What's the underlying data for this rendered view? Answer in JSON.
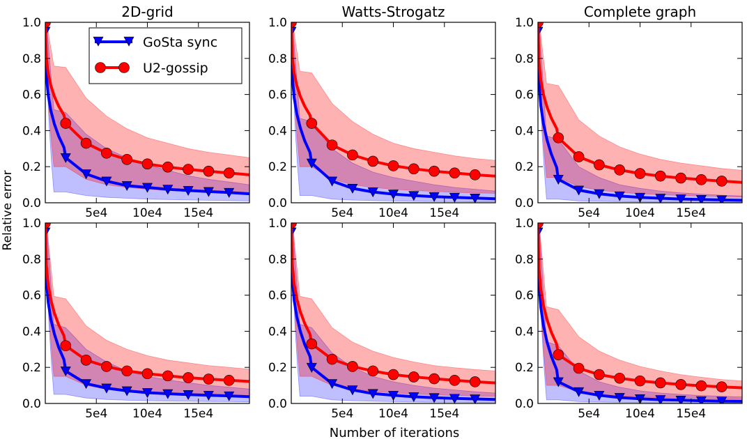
{
  "figure": {
    "ylabel": "Relative error",
    "xlabel": "Number of iterations"
  },
  "legend": {
    "entries": [
      "GoSta sync",
      "U2-gossip"
    ],
    "colors": [
      "#0000ff",
      "#ff0000"
    ]
  },
  "chart_data": [
    {
      "type": "line",
      "row": 0,
      "col": 0,
      "title": "2D-grid",
      "xlim": [
        0,
        200000
      ],
      "ylim": [
        0,
        1.0
      ],
      "yticks": [
        "0.0",
        "0.2",
        "0.4",
        "0.6",
        "0.8",
        "1.0"
      ],
      "xticks": [
        {
          "v": 50000,
          "label": "5e4"
        },
        {
          "v": 100000,
          "label": "10e4"
        },
        {
          "v": 150000,
          "label": "15e4"
        }
      ],
      "series": [
        {
          "name": "GoSta sync",
          "color": "#0000ff",
          "marker": "triangle-down",
          "start": 0.95,
          "x": [
            20000,
            40000,
            60000,
            80000,
            100000,
            120000,
            140000,
            160000,
            180000,
            200000
          ],
          "values": [
            0.25,
            0.16,
            0.12,
            0.095,
            0.085,
            0.075,
            0.068,
            0.062,
            0.057,
            0.05
          ],
          "band_low": [
            0.06,
            0.04,
            0.03,
            0.025,
            0.02,
            0.018,
            0.016,
            0.014,
            0.012,
            0.01
          ],
          "band_high": [
            0.5,
            0.38,
            0.3,
            0.25,
            0.21,
            0.18,
            0.15,
            0.13,
            0.115,
            0.1
          ]
        },
        {
          "name": "U2-gossip",
          "color": "#ff0000",
          "marker": "circle",
          "start": 1.0,
          "x": [
            20000,
            40000,
            60000,
            80000,
            100000,
            120000,
            140000,
            160000,
            180000,
            200000
          ],
          "values": [
            0.44,
            0.33,
            0.275,
            0.24,
            0.215,
            0.198,
            0.185,
            0.175,
            0.165,
            0.155
          ],
          "band_low": [
            0.2,
            0.13,
            0.1,
            0.085,
            0.075,
            0.068,
            0.063,
            0.058,
            0.055,
            0.052
          ],
          "band_high": [
            0.75,
            0.58,
            0.48,
            0.41,
            0.36,
            0.33,
            0.3,
            0.28,
            0.265,
            0.25
          ]
        }
      ]
    },
    {
      "type": "line",
      "row": 0,
      "col": 1,
      "title": "Watts-Strogatz",
      "xlim": [
        0,
        200000
      ],
      "ylim": [
        0,
        1.0
      ],
      "yticks": [
        "0.0",
        "0.2",
        "0.4",
        "0.6",
        "0.8",
        "1.0"
      ],
      "xticks": [
        {
          "v": 50000,
          "label": "5e4"
        },
        {
          "v": 100000,
          "label": "10e4"
        },
        {
          "v": 150000,
          "label": "15e4"
        }
      ],
      "series": [
        {
          "name": "GoSta sync",
          "color": "#0000ff",
          "marker": "triangle-down",
          "start": 0.95,
          "x": [
            20000,
            40000,
            60000,
            80000,
            100000,
            120000,
            140000,
            160000,
            180000,
            200000
          ],
          "values": [
            0.22,
            0.12,
            0.08,
            0.06,
            0.048,
            0.04,
            0.034,
            0.03,
            0.026,
            0.022
          ],
          "band_low": [
            0.04,
            0.02,
            0.015,
            0.012,
            0.01,
            0.008,
            0.007,
            0.006,
            0.005,
            0.005
          ],
          "band_high": [
            0.45,
            0.3,
            0.22,
            0.17,
            0.14,
            0.12,
            0.1,
            0.085,
            0.075,
            0.065
          ]
        },
        {
          "name": "U2-gossip",
          "color": "#ff0000",
          "marker": "circle",
          "start": 1.0,
          "x": [
            20000,
            40000,
            60000,
            80000,
            100000,
            120000,
            140000,
            160000,
            180000,
            200000
          ],
          "values": [
            0.44,
            0.32,
            0.265,
            0.23,
            0.205,
            0.188,
            0.175,
            0.165,
            0.155,
            0.148
          ],
          "band_low": [
            0.2,
            0.13,
            0.1,
            0.085,
            0.075,
            0.068,
            0.063,
            0.058,
            0.055,
            0.052
          ],
          "band_high": [
            0.72,
            0.55,
            0.45,
            0.38,
            0.33,
            0.3,
            0.28,
            0.26,
            0.245,
            0.235
          ]
        }
      ]
    },
    {
      "type": "line",
      "row": 0,
      "col": 2,
      "title": "Complete graph",
      "xlim": [
        0,
        200000
      ],
      "ylim": [
        0,
        1.0
      ],
      "yticks": [
        "0.0",
        "0.2",
        "0.4",
        "0.6",
        "0.8",
        "1.0"
      ],
      "xticks": [
        {
          "v": 50000,
          "label": "5e4"
        },
        {
          "v": 100000,
          "label": "10e4"
        },
        {
          "v": 150000,
          "label": "15e4"
        }
      ],
      "series": [
        {
          "name": "GoSta sync",
          "color": "#0000ff",
          "marker": "triangle-down",
          "start": 0.95,
          "x": [
            20000,
            40000,
            60000,
            80000,
            100000,
            120000,
            140000,
            160000,
            180000,
            200000
          ],
          "values": [
            0.13,
            0.07,
            0.05,
            0.038,
            0.03,
            0.025,
            0.021,
            0.018,
            0.016,
            0.014
          ],
          "band_low": [
            0.02,
            0.01,
            0.008,
            0.006,
            0.005,
            0.004,
            0.004,
            0.003,
            0.003,
            0.003
          ],
          "band_high": [
            0.35,
            0.2,
            0.14,
            0.1,
            0.08,
            0.065,
            0.055,
            0.048,
            0.042,
            0.038
          ]
        },
        {
          "name": "U2-gossip",
          "color": "#ff0000",
          "marker": "circle",
          "start": 1.0,
          "x": [
            20000,
            40000,
            60000,
            80000,
            100000,
            120000,
            140000,
            160000,
            180000,
            200000
          ],
          "values": [
            0.36,
            0.255,
            0.21,
            0.182,
            0.162,
            0.148,
            0.137,
            0.128,
            0.12,
            0.113
          ],
          "band_low": [
            0.14,
            0.09,
            0.07,
            0.058,
            0.05,
            0.045,
            0.04,
            0.037,
            0.034,
            0.032
          ],
          "band_high": [
            0.65,
            0.46,
            0.37,
            0.31,
            0.27,
            0.24,
            0.22,
            0.205,
            0.19,
            0.18
          ]
        }
      ]
    },
    {
      "type": "line",
      "row": 1,
      "col": 0,
      "title": "",
      "xlim": [
        0,
        200000
      ],
      "ylim": [
        0,
        1.0
      ],
      "yticks": [
        "0.0",
        "0.2",
        "0.4",
        "0.6",
        "0.8",
        "1.0"
      ],
      "xticks": [
        {
          "v": 50000,
          "label": "5e4"
        },
        {
          "v": 100000,
          "label": "10e4"
        },
        {
          "v": 150000,
          "label": "15e4"
        }
      ],
      "series": [
        {
          "name": "GoSta sync",
          "color": "#0000ff",
          "marker": "triangle-down",
          "start": 0.95,
          "x": [
            20000,
            40000,
            60000,
            80000,
            100000,
            120000,
            140000,
            160000,
            180000,
            200000
          ],
          "values": [
            0.18,
            0.11,
            0.085,
            0.07,
            0.06,
            0.054,
            0.049,
            0.045,
            0.042,
            0.038
          ],
          "band_low": [
            0.05,
            0.03,
            0.022,
            0.018,
            0.015,
            0.013,
            0.012,
            0.011,
            0.01,
            0.009
          ],
          "band_high": [
            0.42,
            0.3,
            0.23,
            0.18,
            0.15,
            0.13,
            0.115,
            0.1,
            0.09,
            0.08
          ]
        },
        {
          "name": "U2-gossip",
          "color": "#ff0000",
          "marker": "circle",
          "start": 1.0,
          "x": [
            20000,
            40000,
            60000,
            80000,
            100000,
            120000,
            140000,
            160000,
            180000,
            200000
          ],
          "values": [
            0.32,
            0.24,
            0.205,
            0.18,
            0.165,
            0.153,
            0.143,
            0.135,
            0.128,
            0.122
          ],
          "band_low": [
            0.15,
            0.1,
            0.08,
            0.068,
            0.06,
            0.055,
            0.05,
            0.047,
            0.044,
            0.042
          ],
          "band_high": [
            0.58,
            0.43,
            0.35,
            0.3,
            0.265,
            0.24,
            0.225,
            0.21,
            0.2,
            0.19
          ]
        }
      ]
    },
    {
      "type": "line",
      "row": 1,
      "col": 1,
      "title": "",
      "xlim": [
        0,
        200000
      ],
      "ylim": [
        0,
        1.0
      ],
      "yticks": [
        "0.0",
        "0.2",
        "0.4",
        "0.6",
        "0.8",
        "1.0"
      ],
      "xticks": [
        {
          "v": 50000,
          "label": "5e4"
        },
        {
          "v": 100000,
          "label": "10e4"
        },
        {
          "v": 150000,
          "label": "15e4"
        }
      ],
      "series": [
        {
          "name": "GoSta sync",
          "color": "#0000ff",
          "marker": "triangle-down",
          "start": 0.95,
          "x": [
            20000,
            40000,
            60000,
            80000,
            100000,
            120000,
            140000,
            160000,
            180000,
            200000
          ],
          "values": [
            0.2,
            0.11,
            0.075,
            0.055,
            0.045,
            0.037,
            0.032,
            0.028,
            0.025,
            0.022
          ],
          "band_low": [
            0.04,
            0.02,
            0.015,
            0.012,
            0.01,
            0.008,
            0.007,
            0.006,
            0.005,
            0.005
          ],
          "band_high": [
            0.42,
            0.28,
            0.2,
            0.15,
            0.12,
            0.1,
            0.085,
            0.075,
            0.065,
            0.058
          ]
        },
        {
          "name": "U2-gossip",
          "color": "#ff0000",
          "marker": "circle",
          "start": 1.0,
          "x": [
            20000,
            40000,
            60000,
            80000,
            100000,
            120000,
            140000,
            160000,
            180000,
            200000
          ],
          "values": [
            0.33,
            0.245,
            0.205,
            0.18,
            0.16,
            0.147,
            0.137,
            0.128,
            0.12,
            0.114
          ],
          "band_low": [
            0.15,
            0.1,
            0.08,
            0.067,
            0.058,
            0.052,
            0.048,
            0.044,
            0.041,
            0.039
          ],
          "band_high": [
            0.58,
            0.42,
            0.34,
            0.29,
            0.255,
            0.23,
            0.21,
            0.198,
            0.188,
            0.18
          ]
        }
      ]
    },
    {
      "type": "line",
      "row": 1,
      "col": 2,
      "title": "",
      "xlim": [
        0,
        200000
      ],
      "ylim": [
        0,
        1.0
      ],
      "yticks": [
        "0.0",
        "0.2",
        "0.4",
        "0.6",
        "0.8",
        "1.0"
      ],
      "xticks": [
        {
          "v": 50000,
          "label": "5e4"
        },
        {
          "v": 100000,
          "label": "10e4"
        },
        {
          "v": 150000,
          "label": "15e4"
        }
      ],
      "series": [
        {
          "name": "GoSta sync",
          "color": "#0000ff",
          "marker": "triangle-down",
          "start": 0.95,
          "x": [
            20000,
            40000,
            60000,
            80000,
            100000,
            120000,
            140000,
            160000,
            180000,
            200000
          ],
          "values": [
            0.12,
            0.065,
            0.045,
            0.033,
            0.026,
            0.021,
            0.018,
            0.015,
            0.013,
            0.012
          ],
          "band_low": [
            0.02,
            0.01,
            0.008,
            0.006,
            0.005,
            0.004,
            0.004,
            0.003,
            0.003,
            0.003
          ],
          "band_high": [
            0.32,
            0.18,
            0.12,
            0.09,
            0.07,
            0.058,
            0.05,
            0.044,
            0.04,
            0.036
          ]
        },
        {
          "name": "U2-gossip",
          "color": "#ff0000",
          "marker": "circle",
          "start": 1.0,
          "x": [
            20000,
            40000,
            60000,
            80000,
            100000,
            120000,
            140000,
            160000,
            180000,
            200000
          ],
          "values": [
            0.27,
            0.195,
            0.16,
            0.14,
            0.125,
            0.114,
            0.105,
            0.098,
            0.092,
            0.087
          ],
          "band_low": [
            0.1,
            0.065,
            0.05,
            0.042,
            0.036,
            0.032,
            0.029,
            0.027,
            0.025,
            0.023
          ],
          "band_high": [
            0.52,
            0.37,
            0.29,
            0.24,
            0.205,
            0.18,
            0.16,
            0.145,
            0.133,
            0.125
          ]
        }
      ]
    }
  ]
}
